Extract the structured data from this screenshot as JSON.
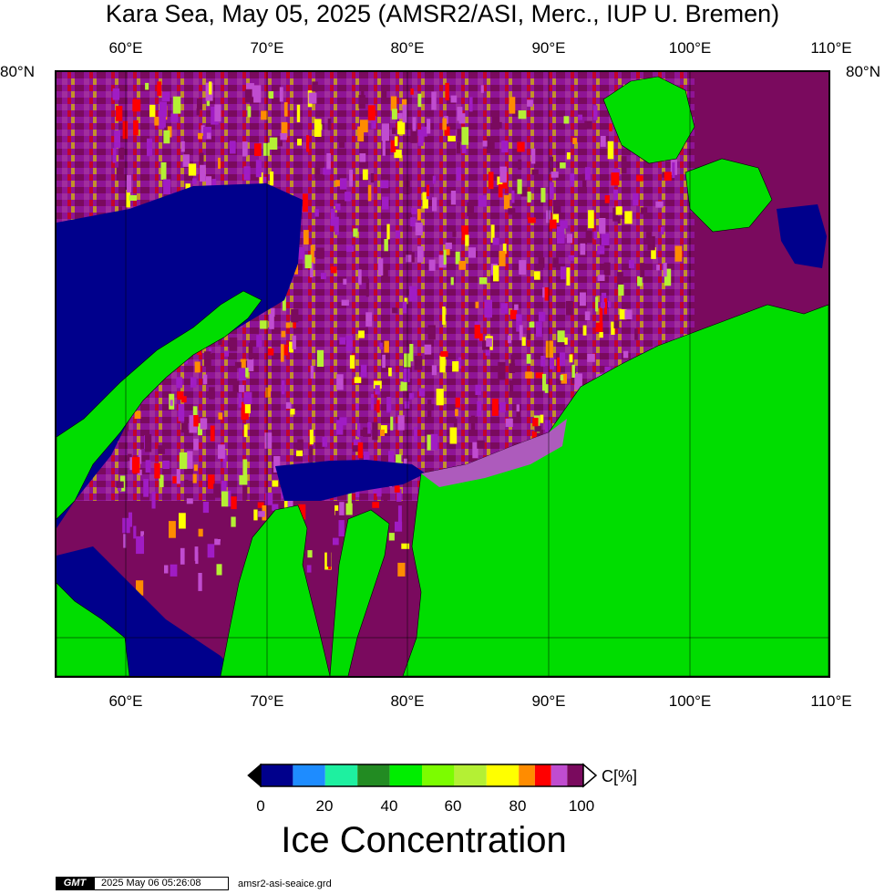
{
  "title": "Kara Sea, May 05, 2025 (AMSR2/ASI, Merc., IUP U. Bremen)",
  "map": {
    "projection": "Mercator",
    "lon_range": [
      55,
      110
    ],
    "top_lat": 80,
    "lon_labels": [
      "60°E",
      "70°E",
      "80°E",
      "90°E",
      "100°E",
      "110°E"
    ],
    "lat_label_left": "80°N",
    "lat_label_right": "80°N",
    "colors": {
      "land": "#00dd00",
      "open_water": "#00008c",
      "high_ice": "#7a0a5e",
      "violet": "#a01cc4",
      "magenta": "#c04cd0"
    }
  },
  "colorbar": {
    "ticks": [
      "0",
      "20",
      "40",
      "60",
      "80",
      "100"
    ],
    "unit": "C[%]",
    "title": "Ice Concentration",
    "colors": [
      "#00008c",
      "#1e8cff",
      "#1ef0a0",
      "#228b22",
      "#00ee00",
      "#7cfc00",
      "#b4f034",
      "#ffff00",
      "#ff8c00",
      "#ff0000",
      "#c04cd0",
      "#7a0a5e"
    ],
    "bounds": [
      0,
      10,
      20,
      30,
      40,
      50,
      60,
      70,
      80,
      85,
      90,
      95,
      100
    ]
  },
  "footer": {
    "logo": "GMT",
    "timestamp": "2025 May 06 05:26:08",
    "grid_file": "amsr2-asi-seaice.grd"
  }
}
